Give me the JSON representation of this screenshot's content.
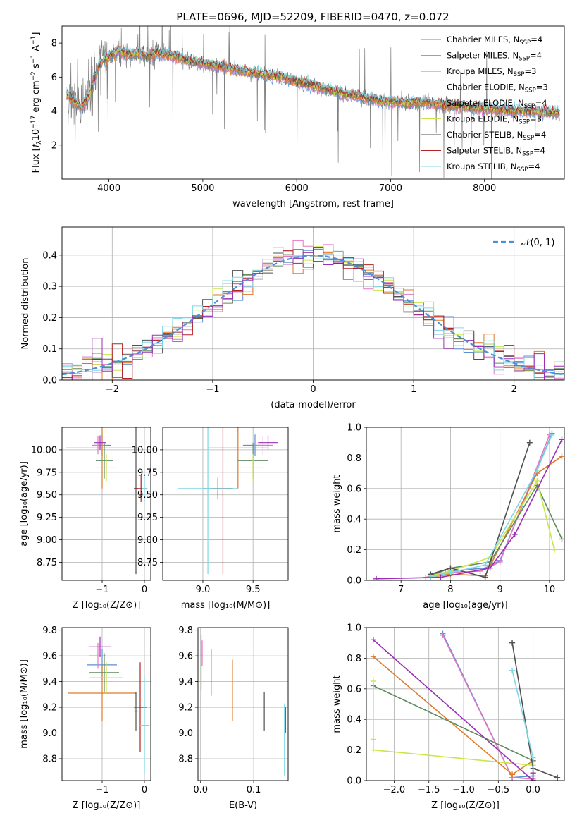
{
  "figure": {
    "title": "PLATE=0696, MJD=52209, FIBERID=0470, z=0.072"
  },
  "palette": {
    "data": "#808080",
    "series": [
      "#5b8ed6",
      "#e377c2",
      "#e07a2a",
      "#5e8a5e",
      "#e07a2a",
      "#c8e64a",
      "#505050",
      "#b22222",
      "#7fd7e6",
      "#9b2fb5"
    ]
  },
  "chart_data": [
    {
      "id": "spectrum",
      "type": "line",
      "title": "PLATE=0696, MJD=52209, FIBERID=0470, z=0.072",
      "xlabel": "wavelength [Angstrom, rest frame]",
      "ylabel_parts": [
        "Flux [",
        "f",
        "λ",
        "10",
        "−17",
        " erg cm",
        "−2",
        " s",
        "−1",
        " A",
        "−1",
        "]"
      ],
      "xlim": [
        3500,
        8850
      ],
      "ylim": [
        0,
        9
      ],
      "xticks": [
        4000,
        5000,
        6000,
        7000,
        8000
      ],
      "yticks": [
        2,
        4,
        6,
        8
      ],
      "legend_location": "upper right",
      "legend": [
        {
          "name": "Chabrier MILES",
          "nssp": "4",
          "color": "#5b8ed6"
        },
        {
          "name": "Salpeter MILES",
          "nssp": "4",
          "color": "#e377c2"
        },
        {
          "name": "Kroupa MILES",
          "nssp": "3",
          "color": "#e07a2a"
        },
        {
          "name": "Chabrier ELODIE",
          "nssp": "3",
          "color": "#5e8a5e"
        },
        {
          "name": "Salpeter ELODIE",
          "nssp": "4",
          "color": "#e07a2a"
        },
        {
          "name": "Kroupa ELODIE",
          "nssp": "3",
          "color": "#c8e64a"
        },
        {
          "name": "Chabrier STELIB",
          "nssp": "4",
          "color": "#505050"
        },
        {
          "name": "Salpeter STELIB",
          "nssp": "4",
          "color": "#b22222"
        },
        {
          "name": "Kroupa STELIB",
          "nssp": "4",
          "color": "#7fd7e6"
        }
      ],
      "model_continuum": {
        "x": [
          3550,
          3620,
          3700,
          3800,
          3900,
          4000,
          4100,
          4200,
          4300,
          4400,
          4500,
          4700,
          4900,
          5100,
          5300,
          5500,
          5700,
          5900,
          6100,
          6300,
          6500,
          6700,
          6900,
          7100,
          7300,
          7500,
          7700,
          7900,
          8100,
          8300,
          8500,
          8700,
          8800
        ],
        "y": [
          5.0,
          4.6,
          4.2,
          5.0,
          6.8,
          7.2,
          7.6,
          7.3,
          7.4,
          7.2,
          7.4,
          7.2,
          6.9,
          6.7,
          6.5,
          6.3,
          6.1,
          5.9,
          5.6,
          5.3,
          5.0,
          4.8,
          4.6,
          4.5,
          4.5,
          4.4,
          4.3,
          4.2,
          4.1,
          4.0,
          4.0,
          3.9,
          3.9
        ]
      }
    },
    {
      "id": "residual-histogram",
      "type": "line",
      "xlabel": "(data-model)/error",
      "ylabel": "Normed distribution",
      "xlim": [
        -2.5,
        2.5
      ],
      "ylim": [
        0,
        0.49
      ],
      "xticks": [
        -2,
        -1,
        0,
        1,
        2
      ],
      "yticks": [
        0.0,
        0.1,
        0.2,
        0.3,
        0.4
      ],
      "legend_location": "upper right",
      "legend": [
        {
          "name": "𝒩(0, 1)",
          "color": "#4a90d9",
          "style": "dashed"
        }
      ]
    },
    {
      "id": "age-vs-z",
      "type": "scatter",
      "xlabel": "Z [log₁₀(Z/Z⊙)]",
      "ylabel": "age  [log₁₀(age/yr)]",
      "xlim": [
        -1.95,
        0.15
      ],
      "ylim": [
        8.55,
        10.25
      ],
      "xticks": [
        -1,
        0
      ],
      "yticks": [
        8.75,
        9.0,
        9.25,
        9.5,
        9.75,
        10.0
      ],
      "points": [
        {
          "x": -1.0,
          "y": 10.05,
          "xerr": 0.2,
          "yerr": 0.12,
          "color": "#5b8ed6"
        },
        {
          "x": -1.1,
          "y": 10.05,
          "xerr": 0.15,
          "yerr": 0.1,
          "color": "#e377c2"
        },
        {
          "x": -1.0,
          "y": 10.02,
          "xerr": 0.85,
          "yerr": 0.45,
          "color": "#e07a2a"
        },
        {
          "x": -0.95,
          "y": 9.88,
          "xerr": 0.2,
          "yerr": 0.2,
          "color": "#5e8a5e"
        },
        {
          "x": -0.9,
          "y": 9.8,
          "xerr": 0.25,
          "yerr": 0.15,
          "color": "#c8e64a"
        },
        {
          "x": -0.2,
          "y": 9.57,
          "xerr": 0.05,
          "yerr": 0.95,
          "color": "#505050"
        },
        {
          "x": -0.08,
          "y": 9.57,
          "xerr": 0.15,
          "yerr": 0.15,
          "color": "#b22222"
        },
        {
          "x": 0.0,
          "y": 9.57,
          "xerr": 0.05,
          "yerr": 0.15,
          "color": "#7fd7e6"
        },
        {
          "x": -1.05,
          "y": 10.08,
          "xerr": 0.15,
          "yerr": 0.08,
          "color": "#9b2fb5"
        }
      ]
    },
    {
      "id": "age-vs-mass",
      "type": "scatter",
      "xlabel": "mass [log₁₀(M/M⊙)]",
      "ylabel": "",
      "xlim": [
        8.6,
        9.85
      ],
      "ylim": [
        8.55,
        10.25
      ],
      "xticks": [
        9.0,
        9.5
      ],
      "yticks": [
        8.75,
        9.0,
        9.25,
        9.5,
        9.75,
        10.0
      ],
      "points": [
        {
          "x": 9.52,
          "y": 10.05,
          "xerr": 0.12,
          "yerr": 0.12,
          "color": "#5b8ed6"
        },
        {
          "x": 9.6,
          "y": 10.05,
          "xerr": 0.1,
          "yerr": 0.1,
          "color": "#e377c2"
        },
        {
          "x": 9.35,
          "y": 10.02,
          "xerr": 0.3,
          "yerr": 0.45,
          "color": "#e07a2a"
        },
        {
          "x": 9.5,
          "y": 9.88,
          "xerr": 0.15,
          "yerr": 0.2,
          "color": "#5e8a5e"
        },
        {
          "x": 9.5,
          "y": 9.8,
          "xerr": 0.12,
          "yerr": 0.15,
          "color": "#c8e64a"
        },
        {
          "x": 9.15,
          "y": 9.57,
          "xerr": 0.15,
          "yerr": 0.12,
          "color": "#505050"
        },
        {
          "x": 9.2,
          "y": 9.57,
          "xerr": 0.1,
          "yerr": 0.95,
          "color": "#b22222"
        },
        {
          "x": 9.05,
          "y": 9.57,
          "xerr": 0.3,
          "yerr": 0.95,
          "color": "#7fd7e6"
        },
        {
          "x": 9.65,
          "y": 10.08,
          "xerr": 0.1,
          "yerr": 0.08,
          "color": "#9b2fb5"
        }
      ]
    },
    {
      "id": "weight-vs-age",
      "type": "line",
      "xlabel": "age  [log₁₀(age/yr)]",
      "ylabel": "mass weight",
      "xlim": [
        6.3,
        10.3
      ],
      "ylim": [
        0,
        1.0
      ],
      "xticks": [
        7,
        8,
        9,
        10
      ],
      "yticks": [
        0.0,
        0.2,
        0.4,
        0.6,
        0.8,
        1.0
      ],
      "series": [
        {
          "color": "#5b8ed6",
          "x": [
            7.6,
            8.0,
            8.7,
            9.0,
            10.05
          ],
          "y": [
            0.03,
            0.06,
            0.08,
            0.13,
            0.96
          ]
        },
        {
          "color": "#e377c2",
          "x": [
            7.5,
            7.9,
            8.6,
            9.0,
            10.0
          ],
          "y": [
            0.02,
            0.05,
            0.06,
            0.12,
            0.95
          ]
        },
        {
          "color": "#e07a2a",
          "x": [
            7.6,
            8.0,
            8.7,
            9.75,
            10.25
          ],
          "y": [
            0.02,
            0.04,
            0.03,
            0.7,
            0.81
          ]
        },
        {
          "color": "#5e8a5e",
          "x": [
            7.6,
            8.0,
            8.8,
            9.75,
            10.25
          ],
          "y": [
            0.03,
            0.08,
            0.12,
            0.62,
            0.27
          ]
        },
        {
          "color": "#c8e64a",
          "x": [
            7.6,
            8.0,
            8.8,
            9.75,
            10.1
          ],
          "y": [
            0.03,
            0.06,
            0.15,
            0.65,
            0.2
          ]
        },
        {
          "color": "#505050",
          "x": [
            7.6,
            8.0,
            8.7,
            9.6
          ],
          "y": [
            0.04,
            0.08,
            0.02,
            0.9
          ]
        },
        {
          "color": "#7fd7e6",
          "x": [
            7.6,
            8.0,
            8.7,
            9.75,
            10.05
          ],
          "y": [
            0.02,
            0.05,
            0.1,
            0.72,
            0.95
          ]
        },
        {
          "color": "#9b2fb5",
          "x": [
            6.5,
            7.8,
            8.8,
            9.3,
            10.25
          ],
          "y": [
            0.01,
            0.02,
            0.08,
            0.3,
            0.92
          ]
        }
      ]
    },
    {
      "id": "mass-vs-z",
      "type": "scatter",
      "xlabel": "Z [log₁₀(Z/Z⊙)]",
      "ylabel": "mass [log₁₀(M/M⊙)]",
      "xlim": [
        -1.95,
        0.15
      ],
      "ylim": [
        8.63,
        9.82
      ],
      "xticks": [
        -1,
        0
      ],
      "yticks": [
        8.8,
        9.0,
        9.2,
        9.4,
        9.6,
        9.8
      ],
      "points": [
        {
          "x": -1.0,
          "y": 9.53,
          "xerr": 0.35,
          "yerr": 0.12,
          "color": "#5b8ed6"
        },
        {
          "x": -1.1,
          "y": 9.6,
          "xerr": 0.2,
          "yerr": 0.1,
          "color": "#e377c2"
        },
        {
          "x": -1.0,
          "y": 9.31,
          "xerr": 0.8,
          "yerr": 0.22,
          "color": "#e07a2a"
        },
        {
          "x": -0.95,
          "y": 9.47,
          "xerr": 0.35,
          "yerr": 0.15,
          "color": "#5e8a5e"
        },
        {
          "x": -0.9,
          "y": 9.43,
          "xerr": 0.4,
          "yerr": 0.12,
          "color": "#c8e64a"
        },
        {
          "x": -0.2,
          "y": 9.17,
          "xerr": 0.05,
          "yerr": 0.15,
          "color": "#505050"
        },
        {
          "x": -0.1,
          "y": 9.2,
          "xerr": 0.15,
          "yerr": 0.35,
          "color": "#b22222"
        },
        {
          "x": 0.0,
          "y": 9.06,
          "xerr": 0.1,
          "yerr": 0.38,
          "color": "#7fd7e6"
        },
        {
          "x": -1.05,
          "y": 9.67,
          "xerr": 0.25,
          "yerr": 0.08,
          "color": "#9b2fb5"
        }
      ]
    },
    {
      "id": "mass-vs-ebv",
      "type": "scatter",
      "xlabel": "E(B-V)",
      "ylabel": "",
      "xlim": [
        -0.005,
        0.165
      ],
      "ylim": [
        8.63,
        9.82
      ],
      "xticks": [
        0.0,
        0.1
      ],
      "yticks": [
        8.8,
        9.0,
        9.2,
        9.4,
        9.6,
        9.8
      ],
      "points": [
        {
          "x": 0.02,
          "y": 9.47,
          "xerr": 0.0,
          "yerr": 0.18,
          "color": "#5b8ed6"
        },
        {
          "x": 0.003,
          "y": 9.62,
          "xerr": 0.0,
          "yerr": 0.1,
          "color": "#e377c2"
        },
        {
          "x": 0.06,
          "y": 9.33,
          "xerr": 0.0,
          "yerr": 0.24,
          "color": "#e07a2a"
        },
        {
          "x": 0.001,
          "y": 9.47,
          "xerr": 0.0,
          "yerr": 0.14,
          "color": "#5e8a5e"
        },
        {
          "x": 0.001,
          "y": 9.45,
          "xerr": 0.0,
          "yerr": 0.1,
          "color": "#c8e64a"
        },
        {
          "x": 0.12,
          "y": 9.17,
          "xerr": 0.0,
          "yerr": 0.15,
          "color": "#505050"
        },
        {
          "x": 0.16,
          "y": 9.1,
          "xerr": 0.0,
          "yerr": 0.1,
          "color": "#b22222"
        },
        {
          "x": 0.158,
          "y": 8.95,
          "xerr": 0.0,
          "yerr": 0.28,
          "color": "#7fd7e6"
        },
        {
          "x": 0.001,
          "y": 9.68,
          "xerr": 0.0,
          "yerr": 0.08,
          "color": "#9b2fb5"
        }
      ]
    },
    {
      "id": "weight-vs-z",
      "type": "line",
      "xlabel": "Z [log₁₀(Z/Z⊙)]",
      "ylabel": "mass weight",
      "xlim": [
        -2.4,
        0.45
      ],
      "ylim": [
        0,
        1.0
      ],
      "xticks": [
        -2.0,
        -1.5,
        -1.0,
        -0.5,
        0.0
      ],
      "yticks": [
        0.0,
        0.2,
        0.4,
        0.6,
        0.8,
        1.0
      ],
      "series": [
        {
          "color": "#5b8ed6",
          "x": [
            -1.3,
            -0.3,
            0.0
          ],
          "y": [
            0.96,
            0.02,
            0.03
          ]
        },
        {
          "color": "#e377c2",
          "x": [
            -1.3,
            -0.3,
            0.0
          ],
          "y": [
            0.95,
            0.02,
            0.01
          ]
        },
        {
          "color": "#e07a2a",
          "x": [
            -2.3,
            -0.3,
            0.0
          ],
          "y": [
            0.81,
            0.04,
            0.13
          ]
        },
        {
          "color": "#5e8a5e",
          "x": [
            -2.3,
            0.0,
            0.0
          ],
          "y": [
            0.62,
            0.13,
            0.0
          ]
        },
        {
          "color": "#c8e64a",
          "x": [
            -2.3,
            -2.3,
            -2.3,
            0.0
          ],
          "y": [
            0.65,
            0.27,
            0.2,
            0.1
          ]
        },
        {
          "color": "#505050",
          "x": [
            -0.3,
            0.0,
            0.35
          ],
          "y": [
            0.9,
            0.08,
            0.02
          ]
        },
        {
          "color": "#7fd7e6",
          "x": [
            -0.3,
            0.0,
            0.0
          ],
          "y": [
            0.72,
            0.15,
            0.05
          ]
        },
        {
          "color": "#9b2fb5",
          "x": [
            -2.3,
            0.0,
            0.0
          ],
          "y": [
            0.92,
            0.0,
            0.05
          ]
        }
      ]
    }
  ]
}
